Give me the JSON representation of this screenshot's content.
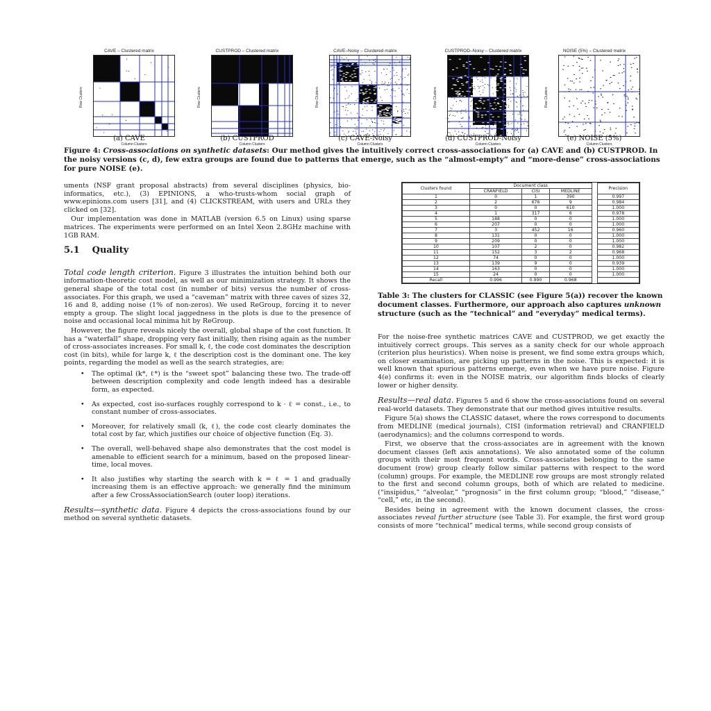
{
  "panels": [
    {
      "title": "CAVE – Clustered matrix",
      "ylabel": "Row Clusters",
      "xlabel": "Column Clusters",
      "caption": "(a) CAVE",
      "dense": [
        [
          0,
          0,
          38,
          38
        ],
        [
          38,
          38,
          28,
          28
        ],
        [
          66,
          66,
          22,
          22
        ],
        [
          88,
          88,
          10,
          10
        ],
        [
          98,
          98,
          9,
          9
        ]
      ],
      "grid": [
        38,
        66,
        88,
        98,
        107
      ],
      "noise": 0.01,
      "style": "cave"
    },
    {
      "title": "CUSTPROD – Clustered matrix",
      "ylabel": "Row Clusters",
      "xlabel": "Column Clusters",
      "caption": "(b) CUSTPROD",
      "dense": [
        [
          0,
          0,
          118,
          40
        ],
        [
          0,
          40,
          38,
          32
        ],
        [
          38,
          72,
          30,
          46
        ],
        [
          68,
          40,
          14,
          78
        ]
      ],
      "grid": [
        40,
        72,
        95,
        105,
        112
      ],
      "noise": 0.0,
      "style": "cust"
    },
    {
      "title": "CAVE–Noisy – Clustered matrix",
      "ylabel": "Row Clusters",
      "xlabel": "Column Clusters",
      "caption": "(c) CAVE-Noisy",
      "dense": [
        [
          10,
          10,
          32,
          28
        ],
        [
          42,
          42,
          26,
          28
        ],
        [
          68,
          70,
          22,
          18
        ],
        [
          90,
          88,
          14,
          10
        ]
      ],
      "grid": [
        6,
        10,
        14,
        42,
        68,
        90,
        104
      ],
      "noise": 0.12,
      "style": "noisy"
    },
    {
      "title": "CUSTPROD–Noisy – Clustered matrix",
      "ylabel": "Row Clusters",
      "xlabel": "Column Clusters",
      "caption": "(d) CUSTPROD-Noisy",
      "dense": [
        [
          0,
          0,
          118,
          30
        ],
        [
          0,
          30,
          36,
          30
        ],
        [
          36,
          60,
          34,
          40
        ],
        [
          70,
          30,
          14,
          88
        ]
      ],
      "grid": [
        30,
        60,
        80,
        95,
        105
      ],
      "noise": 0.15,
      "style": "cnoisy"
    },
    {
      "title": "NOISE (5%) – Clustered matrix",
      "ylabel": "Row Clusters",
      "xlabel": "Column Clusters",
      "caption": "(e) NOISE (5%)",
      "dense": [],
      "grid": [
        52,
        96
      ],
      "noise": 0.07,
      "style": "noise"
    }
  ],
  "figure_caption": {
    "label": "Figure 4:",
    "title": "Cross-associations on synthetic datasets",
    "text": ": Our method gives the intuitively correct cross-associations for (a) CAVE and (b) CUSTPROD. In the noisy versions (c, d), few extra groups are found due to patterns that emerge, such as the “almost-empty” and “more-dense” cross-associations for pure NOISE (e)."
  },
  "left_column": {
    "p1": "uments (NSF grant proposal abstracts) from several disciplines (physics, bio-informatics, etc.), (3) EPINIONS, a who-trusts-whom social graph of www.epinions.com users [31], and (4) CLICKSTREAM, with users and URLs they clicked on [32].",
    "p2": "Our implementation was done in MATLAB (version 6.5 on Linux) using sparse matrices. The experiments were performed on an Intel Xeon 2.8GHz machine with 1GB RAM.",
    "section_num": "5.1",
    "section_title": "Quality",
    "p3_runin": "Total code length criterion.",
    "p3": " Figure 3 illustrates the intuition behind both our information-theoretic cost model, as well as our minimization strategy. It shows the general shape of the total cost (in number of bits) versus the number of cross-associates. For this graph, we used a “caveman” matrix with three caves of sizes 32, 16 and 8, adding noise (1% of non-zeros). We used ReGroup, forcing it to never empty a group. The slight local jaggedness in the plots is due to the presence of noise and occasional local minima hit by ReGroup.",
    "p4": "However, the figure reveals nicely the overall, global shape of the cost function. It has a “waterfall” shape, dropping very fast initially, then rising again as the number of cross-associates increases. For small k, ℓ, the code cost dominates the description cost (in bits), while for large k, ℓ the description cost is the dominant one. The key points, regarding the model as well as the search strategies, are:",
    "bullets": [
      "The optimal (k*, ℓ*) is the “sweet spot” balancing these two. The trade-off between description complexity and code length indeed has a desirable form, as expected.",
      "As expected, cost iso-surfaces roughly correspond to k · ℓ = const., i.e., to constant number of cross-associates.",
      "Moreover, for relatively small (k, ℓ), the code cost clearly dominates the total cost by far, which justifies our choice of objective function (Eq. 3).",
      "The overall, well-behaved shape also demonstrates that the cost model is amenable to efficient search for a minimum, based on the proposed linear-time, local moves.",
      "It also justifies why starting the search with k = ℓ = 1 and gradually increasing them is an effective approach: we generally find the minimum after a few CrossAssociationSearch (outer loop) iterations."
    ],
    "p5_runin": "Results—synthetic data.",
    "p5": " Figure 4 depicts the cross-associations found by our method on several synthetic datasets."
  },
  "table": {
    "head_clusters": "Clusters found",
    "head_docclass": "Document class",
    "head_cols": [
      "CRANFIELD",
      "CISI",
      "MEDLINE"
    ],
    "head_precision": "Precision",
    "rows": [
      [
        "1",
        "0",
        "1",
        "390",
        "0.997"
      ],
      [
        "2",
        "2",
        "676",
        "9",
        "0.984"
      ],
      [
        "3",
        "0",
        "0",
        "610",
        "1.000"
      ],
      [
        "4",
        "1",
        "317",
        "6",
        "0.978"
      ],
      [
        "5",
        "188",
        "0",
        "0",
        "1.000"
      ],
      [
        "6",
        "207",
        "0",
        "0",
        "1.000"
      ],
      [
        "7",
        "3",
        "452",
        "16",
        "0.960"
      ],
      [
        "8",
        "131",
        "0",
        "0",
        "1.000"
      ],
      [
        "9",
        "209",
        "0",
        "0",
        "1.000"
      ],
      [
        "10",
        "107",
        "2",
        "0",
        "0.982"
      ],
      [
        "11",
        "152",
        "3",
        "2",
        "0.968"
      ],
      [
        "12",
        "74",
        "0",
        "0",
        "1.000"
      ],
      [
        "13",
        "139",
        "9",
        "0",
        "0.939"
      ],
      [
        "14",
        "163",
        "0",
        "0",
        "1.000"
      ],
      [
        "15",
        "24",
        "0",
        "0",
        "1.000"
      ]
    ],
    "recall_label": "Recall",
    "recall": [
      "0.996",
      "0.990",
      "0.968"
    ]
  },
  "table_caption": {
    "label": "Table 3:",
    "text_before": " The clusters for CLASSIC (see Figure 5(a)) recover the known document classes. Furthermore, our approach also captures ",
    "emph": "unknown",
    "text_after": " structure (such as the “technical” and “everyday” medical terms)."
  },
  "right_column": {
    "p1": "For the noise-free synthetic matrices CAVE and CUSTPROD, we get exactly the intuitively correct groups. This serves as a sanity check for our whole approach (criterion plus heuristics). When noise is present, we find some extra groups which, on closer examination, are picking up patterns in the noise. This is expected: it is well known that spurious patterns emerge, even when we have pure noise. Figure 4(e) confirms it: even in the NOISE matrix, our algorithm finds blocks of clearly lower or higher density.",
    "p2_runin": "Results—real data.",
    "p2": " Figures 5 and 6 show the cross-associations found on several real-world datasets. They demonstrate that our method gives intuitive results.",
    "p3": "Figure 5(a) shows the CLASSIC dataset, where the rows correspond to documents from MEDLINE (medical journals), CISI (information retrieval) and CRANFIELD (aerodynamics); and the columns correspond to words.",
    "p4": "First, we observe that the cross-associates are in agreement with the known document classes (left axis annotations). We also annotated some of the column groups with their most frequent words. Cross-associates belonging to the same document (row) group clearly follow similar patterns with respect to the word (column) groups. For example, the MEDLINE row groups are most strongly related to the first and second column groups, both of which are related to medicine. (“insipidus,” “alveolar,” “prognosis” in the first column group; “blood,” “disease,” “cell,” etc, in the second).",
    "p5_before": "Besides being in agreement with the known document classes, the cross-associates ",
    "p5_emph": "reveal further structure",
    "p5_after": " (see Table 3). For example, the first word group consists of more “technical” medical terms, while second group consists of"
  }
}
